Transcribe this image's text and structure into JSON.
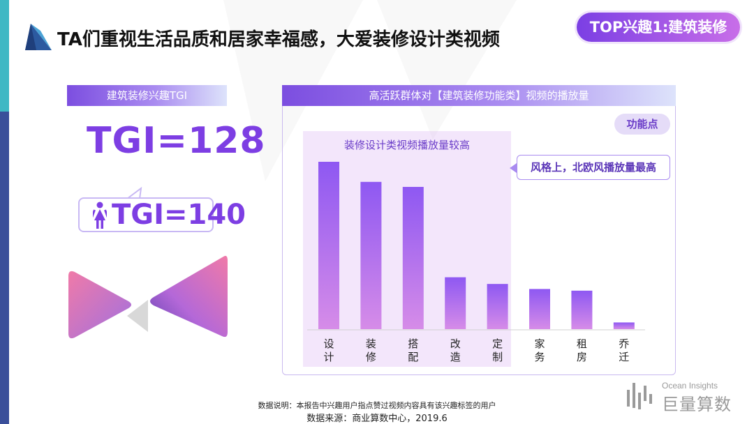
{
  "page": {
    "title": "TA们重视生活品质和居家幸福感，大爱装修设计类视频",
    "badge": "TOP兴趣1:建筑装修"
  },
  "left_panel": {
    "header": "建筑装修兴趣TGI",
    "tgi_main": "TGI=128",
    "tgi_female": "TGI=140"
  },
  "chart_panel": {
    "header": "高活跃群体对【建筑装修功能类】视频的播放量",
    "feature_pill": "功能点",
    "highlight_label": "装修设计类视频播放量较高",
    "callout": "风格上，北欧风播放量最高"
  },
  "chart_data": {
    "type": "bar",
    "title": "高活跃群体对【建筑装修功能类】视频的播放量",
    "categories": [
      "设计",
      "装修",
      "搭配",
      "改造",
      "定制",
      "家务",
      "租房",
      "乔迁"
    ],
    "values": [
      100,
      88,
      85,
      31,
      27,
      24,
      23,
      4
    ],
    "ylim": [
      0,
      100
    ],
    "grid": false,
    "legend": "none",
    "colors": {
      "bar_top": "#8e58f2",
      "bar_bottom": "#d68ce8"
    }
  },
  "footer": {
    "note": "数据说明：本报告中兴趣用户指点赞过视频内容具有该兴趣标签的用户",
    "source": "数据来源：商业算数中心，2019.6",
    "brand_en": "Ocean Insights",
    "brand_cn": "巨量算数"
  },
  "colors": {
    "accent": "#7d3ee3",
    "teal": "#3fb8c4",
    "navy": "#3a4f9a"
  }
}
